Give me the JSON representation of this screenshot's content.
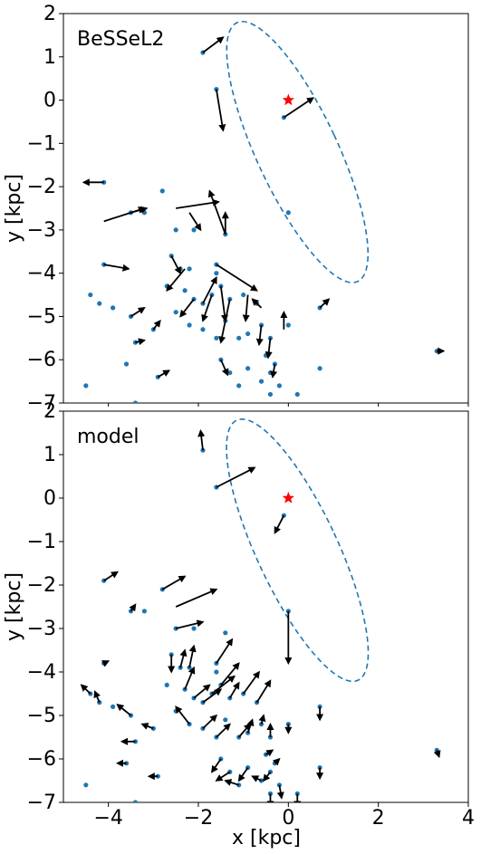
{
  "figure": {
    "xlabel": "x [kpc]",
    "ylabel": "y [kpc]",
    "xticks": [
      -4,
      -2,
      0,
      2,
      4
    ],
    "yticks": [
      -7,
      -6,
      -5,
      -4,
      -3,
      -2,
      -1,
      0,
      1,
      2
    ]
  },
  "colors": {
    "point": "#1f77b4",
    "ellipse": "#1f77b4",
    "arrow": "#000000",
    "star": "#ff0000"
  },
  "chart_data": [
    {
      "type": "scatter",
      "title": "BeSSeL2",
      "xlim": [
        -5,
        4
      ],
      "ylim": [
        -7,
        2
      ],
      "xlabel": "",
      "ylabel": "y [kpc]",
      "sun": [
        0,
        0
      ],
      "ellipse": {
        "center": [
          0.2,
          -1.2
        ],
        "semi_axes": [
          0.9,
          3.3
        ],
        "angle_deg": -25,
        "style": "dashed"
      },
      "points": [
        [
          -1.9,
          1.1
        ],
        [
          -1.6,
          0.25
        ],
        [
          -0.1,
          -0.4
        ],
        [
          -4.1,
          -1.9
        ],
        [
          -2.8,
          -2.1
        ],
        [
          0.0,
          -2.6
        ],
        [
          -2.5,
          -3.0
        ],
        [
          -2.1,
          -3.0
        ],
        [
          -3.5,
          -2.6
        ],
        [
          -3.2,
          -2.6
        ],
        [
          -1.4,
          -3.1
        ],
        [
          -4.1,
          -3.8
        ],
        [
          -2.6,
          -3.6
        ],
        [
          -2.4,
          -3.9
        ],
        [
          -1.6,
          -3.8
        ],
        [
          -4.4,
          -4.5
        ],
        [
          -4.2,
          -4.7
        ],
        [
          -3.9,
          -4.8
        ],
        [
          -2.5,
          -4.9
        ],
        [
          -2.3,
          -4.4
        ],
        [
          -2.1,
          -4.6
        ],
        [
          -1.9,
          -4.7
        ],
        [
          -1.7,
          -4.5
        ],
        [
          -1.5,
          -4.3
        ],
        [
          -1.3,
          -4.6
        ],
        [
          -1.0,
          -4.5
        ],
        [
          -0.7,
          -4.7
        ],
        [
          -2.7,
          -4.3
        ],
        [
          -3.5,
          -5.0
        ],
        [
          -3.4,
          -5.6
        ],
        [
          -3.6,
          -6.1
        ],
        [
          -3.0,
          -5.3
        ],
        [
          -2.2,
          -5.2
        ],
        [
          -1.9,
          -5.3
        ],
        [
          -1.6,
          -5.5
        ],
        [
          -1.4,
          -5.1
        ],
        [
          -1.1,
          -5.5
        ],
        [
          -0.9,
          -5.4
        ],
        [
          -0.6,
          -5.2
        ],
        [
          -0.4,
          -5.5
        ],
        [
          -0.5,
          -5.9
        ],
        [
          -0.3,
          -6.1
        ],
        [
          -0.4,
          -6.3
        ],
        [
          -0.6,
          -6.5
        ],
        [
          -0.2,
          -6.6
        ],
        [
          -0.4,
          -6.8
        ],
        [
          -1.5,
          -6.0
        ],
        [
          -1.3,
          -6.3
        ],
        [
          -1.1,
          -6.6
        ],
        [
          -0.9,
          -6.2
        ],
        [
          -2.9,
          -6.4
        ],
        [
          -4.5,
          -6.6
        ],
        [
          -3.4,
          -7.0
        ],
        [
          0.7,
          -4.8
        ],
        [
          0.7,
          -6.2
        ],
        [
          0.0,
          -5.2
        ],
        [
          0.2,
          -6.8
        ],
        [
          3.3,
          -5.8
        ],
        [
          -1.6,
          -4.0
        ],
        [
          -2.2,
          -3.9
        ]
      ],
      "vectors": [
        [
          -1.9,
          1.1,
          0.45,
          0.35
        ],
        [
          -1.6,
          0.25,
          0.15,
          -0.95
        ],
        [
          -0.1,
          -0.4,
          0.65,
          0.45
        ],
        [
          -4.1,
          -1.9,
          -0.45,
          0.0
        ],
        [
          -2.5,
          -2.5,
          0.95,
          0.15
        ],
        [
          -4.1,
          -2.8,
          0.9,
          0.3
        ],
        [
          -2.2,
          -2.6,
          0.25,
          -0.4
        ],
        [
          -3.5,
          -2.6,
          0.35,
          0.1
        ],
        [
          -1.4,
          -3.1,
          0.0,
          0.5
        ],
        [
          -4.1,
          -3.8,
          0.55,
          -0.1
        ],
        [
          -1.6,
          -3.8,
          0.9,
          -0.6
        ],
        [
          -1.4,
          -3.1,
          -0.35,
          1.0
        ],
        [
          -2.6,
          -3.6,
          0.2,
          -0.4
        ],
        [
          -2.3,
          -3.9,
          -0.4,
          -0.5
        ],
        [
          -1.9,
          -4.7,
          0.3,
          0.6
        ],
        [
          -1.5,
          -4.3,
          0.1,
          -0.8
        ],
        [
          -2.1,
          -4.6,
          -0.3,
          -0.4
        ],
        [
          -1.3,
          -4.6,
          -0.2,
          -1.0
        ],
        [
          -1.7,
          -4.5,
          -0.2,
          -0.6
        ],
        [
          -0.9,
          -4.5,
          -0.05,
          -0.6
        ],
        [
          -0.6,
          -5.2,
          -0.05,
          -0.45
        ],
        [
          -0.4,
          -5.5,
          -0.05,
          -0.45
        ],
        [
          -0.3,
          -6.1,
          -0.05,
          -0.3
        ],
        [
          -1.5,
          -6.0,
          0.15,
          -0.35
        ],
        [
          -3.5,
          -5.0,
          0.3,
          0.2
        ],
        [
          -3.4,
          -5.6,
          0.2,
          0.05
        ],
        [
          -3.0,
          -5.3,
          0.15,
          0.2
        ],
        [
          -2.9,
          -6.4,
          0.25,
          0.15
        ],
        [
          0.7,
          -4.8,
          0.2,
          0.2
        ],
        [
          3.3,
          -5.8,
          0.15,
          0.0
        ],
        [
          -0.1,
          -5.3,
          0.0,
          0.4
        ],
        [
          -0.6,
          -4.8,
          -0.2,
          0.2
        ]
      ]
    },
    {
      "type": "scatter",
      "title": "model",
      "xlim": [
        -5,
        4
      ],
      "ylim": [
        -7,
        2
      ],
      "xlabel": "x [kpc]",
      "ylabel": "y [kpc]",
      "sun": [
        0,
        0
      ],
      "ellipse": {
        "center": [
          0.2,
          -1.2
        ],
        "semi_axes": [
          0.9,
          3.3
        ],
        "angle_deg": -25,
        "style": "dashed"
      },
      "points": [
        [
          -1.9,
          1.1
        ],
        [
          -1.6,
          0.25
        ],
        [
          -0.1,
          -0.4
        ],
        [
          -4.1,
          -1.9
        ],
        [
          -2.8,
          -2.1
        ],
        [
          0.0,
          -2.6
        ],
        [
          -2.5,
          -3.0
        ],
        [
          -2.1,
          -3.0
        ],
        [
          -3.5,
          -2.6
        ],
        [
          -3.2,
          -2.6
        ],
        [
          -1.4,
          -3.1
        ],
        [
          -4.1,
          -3.8
        ],
        [
          -2.6,
          -3.6
        ],
        [
          -2.4,
          -3.9
        ],
        [
          -1.6,
          -3.8
        ],
        [
          -4.4,
          -4.5
        ],
        [
          -4.2,
          -4.7
        ],
        [
          -3.9,
          -4.8
        ],
        [
          -2.5,
          -4.9
        ],
        [
          -2.3,
          -4.4
        ],
        [
          -2.1,
          -4.6
        ],
        [
          -1.9,
          -4.7
        ],
        [
          -1.7,
          -4.5
        ],
        [
          -1.5,
          -4.3
        ],
        [
          -1.3,
          -4.6
        ],
        [
          -1.0,
          -4.5
        ],
        [
          -0.7,
          -4.7
        ],
        [
          -2.7,
          -4.3
        ],
        [
          -3.5,
          -5.0
        ],
        [
          -3.4,
          -5.6
        ],
        [
          -3.6,
          -6.1
        ],
        [
          -3.0,
          -5.3
        ],
        [
          -2.2,
          -5.2
        ],
        [
          -1.9,
          -5.3
        ],
        [
          -1.6,
          -5.5
        ],
        [
          -1.4,
          -5.1
        ],
        [
          -1.1,
          -5.5
        ],
        [
          -0.9,
          -5.4
        ],
        [
          -0.6,
          -5.2
        ],
        [
          -0.4,
          -5.5
        ],
        [
          -0.5,
          -5.9
        ],
        [
          -0.3,
          -6.1
        ],
        [
          -0.4,
          -6.3
        ],
        [
          -0.6,
          -6.5
        ],
        [
          -0.2,
          -6.6
        ],
        [
          -0.4,
          -6.8
        ],
        [
          -1.5,
          -6.0
        ],
        [
          -1.3,
          -6.3
        ],
        [
          -1.1,
          -6.6
        ],
        [
          -0.9,
          -6.2
        ],
        [
          -2.9,
          -6.4
        ],
        [
          -4.5,
          -6.6
        ],
        [
          -3.4,
          -7.0
        ],
        [
          0.7,
          -4.8
        ],
        [
          0.7,
          -6.2
        ],
        [
          0.0,
          -5.2
        ],
        [
          0.2,
          -6.8
        ],
        [
          3.3,
          -5.8
        ],
        [
          -1.6,
          -4.0
        ],
        [
          -2.2,
          -3.9
        ]
      ],
      "vectors": [
        [
          -1.9,
          1.1,
          -0.05,
          0.45
        ],
        [
          -1.6,
          0.25,
          0.85,
          0.45
        ],
        [
          -0.1,
          -0.4,
          -0.2,
          -0.4
        ],
        [
          -4.1,
          -1.9,
          0.3,
          0.2
        ],
        [
          -2.8,
          -2.1,
          0.5,
          0.3
        ],
        [
          -2.5,
          -2.5,
          0.9,
          0.4
        ],
        [
          -2.5,
          -3.0,
          0.6,
          0.15
        ],
        [
          0.0,
          -2.6,
          0.0,
          -1.2
        ],
        [
          -3.5,
          -2.6,
          0.1,
          0.15
        ],
        [
          -4.1,
          -3.8,
          0.1,
          0.05
        ],
        [
          -2.6,
          -3.6,
          0.0,
          -0.4
        ],
        [
          -2.4,
          -3.9,
          0.1,
          0.4
        ],
        [
          -2.3,
          -4.4,
          0.2,
          0.5
        ],
        [
          -2.1,
          -4.6,
          0.35,
          0.3
        ],
        [
          -1.9,
          -4.7,
          0.4,
          0.3
        ],
        [
          -1.7,
          -4.5,
          0.5,
          0.4
        ],
        [
          -1.5,
          -4.3,
          0.4,
          0.5
        ],
        [
          -1.3,
          -4.6,
          0.2,
          0.35
        ],
        [
          -1.0,
          -4.5,
          0.35,
          0.5
        ],
        [
          -0.7,
          -4.7,
          0.3,
          0.5
        ],
        [
          -1.6,
          -3.8,
          0.35,
          0.55
        ],
        [
          -2.2,
          -3.9,
          0.1,
          0.5
        ],
        [
          -4.4,
          -4.5,
          -0.2,
          0.2
        ],
        [
          -4.2,
          -4.7,
          -0.1,
          0.25
        ],
        [
          -3.5,
          -5.0,
          -0.3,
          0.25
        ],
        [
          -3.4,
          -5.6,
          -0.3,
          0.0
        ],
        [
          -3.6,
          -6.1,
          -0.2,
          0.0
        ],
        [
          -3.0,
          -5.3,
          -0.25,
          0.1
        ],
        [
          -2.2,
          -5.2,
          -0.3,
          0.4
        ],
        [
          -1.9,
          -5.3,
          0.3,
          0.3
        ],
        [
          -1.6,
          -5.5,
          0.3,
          0.3
        ],
        [
          -1.1,
          -5.5,
          0.25,
          0.3
        ],
        [
          -0.9,
          -5.4,
          0.1,
          0.3
        ],
        [
          -0.6,
          -5.2,
          0.05,
          0.2
        ],
        [
          -0.4,
          -5.5,
          0.0,
          0.3
        ],
        [
          -0.5,
          -5.9,
          0.15,
          0.1
        ],
        [
          -0.3,
          -6.1,
          0.1,
          0.1
        ],
        [
          -0.4,
          -6.3,
          -0.15,
          -0.2
        ],
        [
          -0.6,
          -6.5,
          -0.2,
          0.1
        ],
        [
          -0.2,
          -6.6,
          0.05,
          -0.3
        ],
        [
          -0.4,
          -6.8,
          0.0,
          -0.3
        ],
        [
          -1.5,
          -6.0,
          -0.2,
          -0.3
        ],
        [
          -1.3,
          -6.3,
          -0.3,
          -0.2
        ],
        [
          -1.1,
          -6.6,
          -0.3,
          0.1
        ],
        [
          -0.9,
          -6.2,
          -0.2,
          -0.3
        ],
        [
          -2.9,
          -6.4,
          -0.2,
          0.0
        ],
        [
          0.7,
          -4.8,
          0.0,
          -0.3
        ],
        [
          0.7,
          -6.2,
          0.0,
          -0.25
        ],
        [
          0.0,
          -5.2,
          0.0,
          -0.2
        ],
        [
          0.2,
          -6.8,
          0.0,
          -0.3
        ],
        [
          3.3,
          -5.8,
          0.05,
          -0.15
        ]
      ]
    }
  ]
}
